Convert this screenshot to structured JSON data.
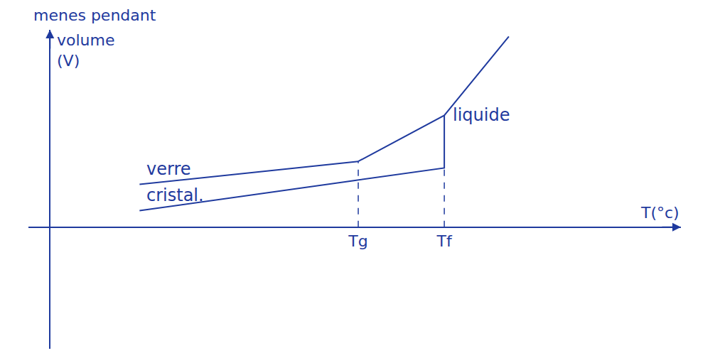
{
  "chart_data": {
    "type": "line",
    "annotations": [
      "menes pendant"
    ],
    "x_label": "T(°c)",
    "y_label": "volume (V)",
    "series": [
      {
        "name": "verre",
        "color": "#1f3a9e",
        "x": [
          1.25,
          4.3
        ],
        "values": [
          1.3,
          2.0
        ]
      },
      {
        "name": "liquide",
        "color": "#1f3a9e",
        "x": [
          4.3,
          5.5,
          6.4
        ],
        "values": [
          2.0,
          3.4,
          5.8
        ]
      },
      {
        "name": "cristal.",
        "color": "#1f3a9e",
        "x": [
          1.25,
          5.5,
          5.5
        ],
        "values": [
          0.5,
          1.8,
          3.4
        ]
      }
    ],
    "xlim": [
      -0.3,
      8.8
    ],
    "ylim": [
      -3.7,
      6
    ],
    "xticks": [
      {
        "value": 4.3,
        "label": "Tg"
      },
      {
        "value": 5.5,
        "label": "Tf"
      }
    ],
    "yticks": [],
    "tick_labels": "x",
    "grid": false
  }
}
